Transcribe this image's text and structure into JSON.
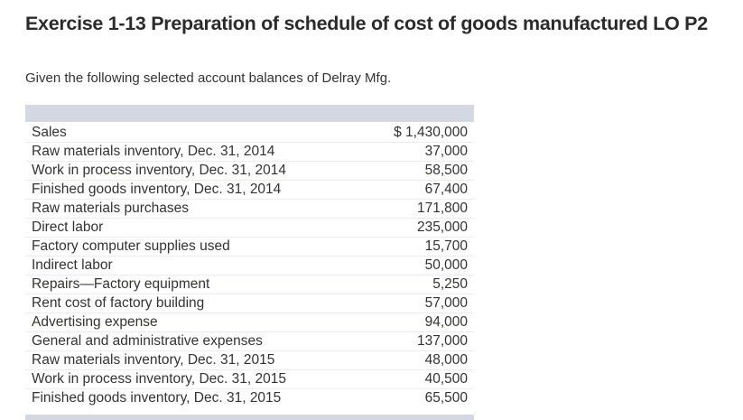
{
  "exercise": {
    "title": "Exercise 1-13 Preparation of schedule of cost of goods manufactured LO P2",
    "intro": "Given the following selected account balances of Delray Mfg."
  },
  "balances": [
    {
      "label": "Sales",
      "value": "$ 1,430,000"
    },
    {
      "label": "Raw materials inventory, Dec. 31, 2014",
      "value": "37,000"
    },
    {
      "label": "Work in process inventory, Dec. 31, 2014",
      "value": "58,500"
    },
    {
      "label": "Finished goods inventory, Dec. 31, 2014",
      "value": "67,400"
    },
    {
      "label": "Raw materials purchases",
      "value": "171,800"
    },
    {
      "label": "Direct labor",
      "value": "235,000"
    },
    {
      "label": "Factory computer supplies used",
      "value": "15,700"
    },
    {
      "label": "Indirect labor",
      "value": "50,000"
    },
    {
      "label": "Repairs—Factory equipment",
      "value": "5,250"
    },
    {
      "label": "Rent cost of factory building",
      "value": "57,000"
    },
    {
      "label": "Advertising expense",
      "value": "94,000"
    },
    {
      "label": "General and administrative expenses",
      "value": "137,000"
    },
    {
      "label": "Raw materials inventory, Dec. 31, 2015",
      "value": "48,000"
    },
    {
      "label": "Work in process inventory, Dec. 31, 2015",
      "value": "40,500"
    },
    {
      "label": "Finished goods inventory, Dec. 31, 2015",
      "value": "65,500"
    }
  ]
}
